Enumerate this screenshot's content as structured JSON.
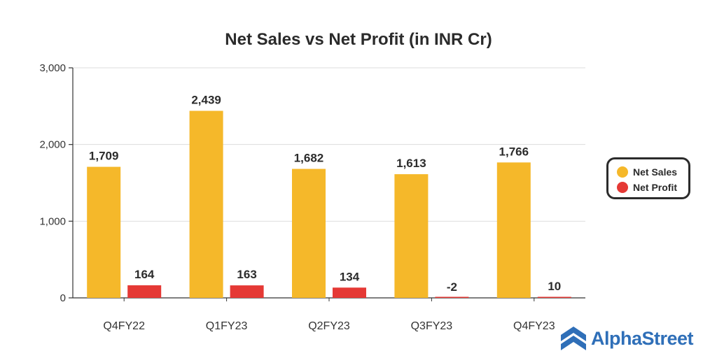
{
  "chart_data": {
    "type": "bar",
    "title": "Net Sales vs Net Profit (in INR Cr)",
    "categories": [
      "Q4FY22",
      "Q1FY23",
      "Q2FY23",
      "Q3FY23",
      "Q4FY23"
    ],
    "series": [
      {
        "name": "Net Sales",
        "color": "#f5b82a",
        "values": [
          1709,
          2439,
          1682,
          1613,
          1766
        ]
      },
      {
        "name": "Net Profit",
        "color": "#e53935",
        "values": [
          164,
          163,
          134,
          -2,
          10
        ]
      }
    ],
    "data_labels": {
      "Net Sales": [
        "1,709",
        "2,439",
        "1,682",
        "1,613",
        "1,766"
      ],
      "Net Profit": [
        "164",
        "163",
        "134",
        "-2",
        "10"
      ]
    },
    "yticks": [
      "0",
      "1,000",
      "2,000",
      "3,000"
    ],
    "ytick_values": [
      0,
      1000,
      2000,
      3000
    ],
    "ylim": [
      0,
      3000
    ],
    "xlabel": "",
    "ylabel": "",
    "grid": true,
    "legend_position": "right"
  },
  "legend": {
    "items": [
      {
        "label": "Net Sales",
        "color": "#f5b82a"
      },
      {
        "label": "Net Profit",
        "color": "#e53935"
      }
    ]
  },
  "brand": {
    "name": "AlphaStreet",
    "icon": "alphastreet-logo-icon",
    "color": "#2f6fb8"
  }
}
